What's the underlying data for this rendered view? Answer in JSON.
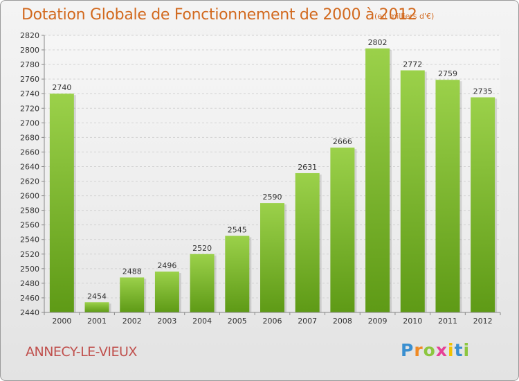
{
  "chart_data": {
    "type": "bar",
    "title": "Dotation Globale de Fonctionnement de 2000 à 2012",
    "unit_label": "(en milliers d'€)",
    "categories": [
      "2000",
      "2001",
      "2002",
      "2003",
      "2004",
      "2005",
      "2006",
      "2007",
      "2008",
      "2009",
      "2010",
      "2011",
      "2012"
    ],
    "values": [
      2740,
      2454,
      2488,
      2496,
      2520,
      2545,
      2590,
      2631,
      2666,
      2802,
      2772,
      2759,
      2735
    ],
    "data_labels": [
      "2740",
      "2454",
      "2488",
      "2496",
      "2520",
      "2545",
      "2590",
      "2631",
      "2666",
      "2802",
      "2772",
      "2759",
      "2735"
    ],
    "y_ticks": [
      "2440",
      "2460",
      "2480",
      "2500",
      "2520",
      "2540",
      "2560",
      "2580",
      "2600",
      "2620",
      "2640",
      "2660",
      "2680",
      "2700",
      "2720",
      "2740",
      "2760",
      "2780",
      "2800",
      "2820"
    ],
    "ylim": [
      2440,
      2820
    ],
    "grid": true,
    "bar_color": "#7fbf2e",
    "bar_color_light": "#9bd14a",
    "bar_color_dark": "#5e9a16"
  },
  "commune": "ANNECY-LE-VIEUX",
  "logo": {
    "text": "Proxiti",
    "letters": [
      "P",
      "r",
      "o",
      "x",
      "i",
      "t",
      "i"
    ],
    "letter_colors": [
      "#3a8fd0",
      "#f08a24",
      "#8cc63f",
      "#e64097",
      "#f2c200",
      "#3a8fd0",
      "#8cc63f"
    ]
  },
  "colors": {
    "title": "#d2691e",
    "commune": "#c0504d"
  }
}
